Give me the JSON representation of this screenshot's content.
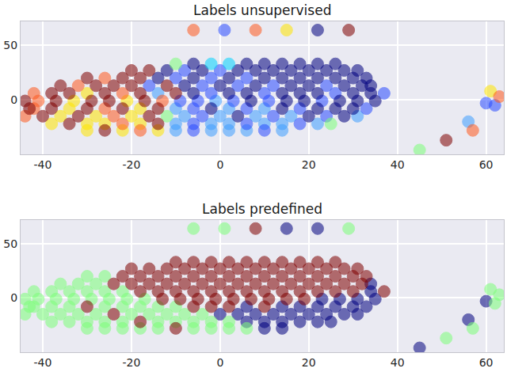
{
  "chart_data": [
    {
      "type": "scatter",
      "title": "Labels unsupervised",
      "marker": "circle",
      "grid": true,
      "xlim": [
        -45,
        64
      ],
      "ylim": [
        -50,
        72
      ],
      "xticks": [
        -40,
        -20,
        0,
        20,
        40,
        60
      ],
      "yticks": [
        0,
        50
      ],
      "series": [
        {
          "color": "#3f9fff",
          "x": [
            -14,
            -1,
            -10,
            2,
            10,
            -8,
            0,
            8,
            16,
            31,
            -10,
            -2,
            2,
            10,
            14,
            22,
            -10,
            -2,
            2,
            6,
            14,
            56
          ],
          "y": [
            6,
            -1,
            -8,
            -8,
            -8,
            -15,
            -15,
            -15,
            -15,
            -15,
            -22,
            -22,
            -22,
            -22,
            -22,
            -22,
            -28,
            -28,
            -28,
            -28,
            -28,
            -20
          ]
        },
        {
          "color": "#2a4cff",
          "x": [
            -8,
            0,
            -10,
            -2,
            6,
            -16,
            -4,
            4,
            12,
            24,
            -2,
            10,
            26,
            37,
            -9,
            -5,
            3,
            11,
            23,
            -6,
            6,
            18,
            33,
            -4,
            12,
            24,
            -6,
            6,
            18,
            -6,
            10,
            1,
            60,
            62
          ],
          "y": [
            27,
            27,
            20,
            20,
            20,
            13,
            13,
            13,
            13,
            13,
            6,
            6,
            6,
            6,
            -1,
            -1,
            -1,
            -1,
            -1,
            -8,
            -8,
            -8,
            -8,
            -15,
            -15,
            -15,
            -22,
            -22,
            -22,
            -28,
            -28,
            64,
            -3,
            -5
          ]
        },
        {
          "color": "#00007f",
          "x": [
            -6,
            6,
            10,
            14,
            18,
            22,
            26,
            -12,
            -4,
            4,
            8,
            12,
            16,
            20,
            24,
            28,
            31,
            -14,
            -6,
            2,
            10,
            14,
            18,
            22,
            26,
            30,
            33,
            -8,
            0,
            8,
            16,
            20,
            28,
            32,
            34,
            -6,
            2,
            6,
            14,
            18,
            22,
            30,
            34,
            7,
            15,
            19,
            27,
            31,
            35,
            -2,
            14,
            22,
            26,
            30,
            4,
            20,
            28,
            22
          ],
          "y": [
            33,
            33,
            33,
            33,
            33,
            33,
            33,
            27,
            27,
            27,
            27,
            27,
            27,
            27,
            27,
            27,
            27,
            20,
            20,
            20,
            20,
            20,
            20,
            20,
            20,
            20,
            20,
            13,
            13,
            13,
            13,
            13,
            13,
            13,
            13,
            6,
            6,
            6,
            6,
            6,
            6,
            6,
            6,
            -1,
            -1,
            -1,
            -1,
            -1,
            -1,
            -8,
            -8,
            -8,
            -8,
            -8,
            -15,
            -15,
            -15,
            64
          ]
        },
        {
          "color": "#00d4ff",
          "x": [
            -2,
            2
          ],
          "y": [
            33,
            33
          ]
        },
        {
          "color": "#7dff7a",
          "x": [
            -10,
            -12,
            25,
            45
          ],
          "y": [
            33,
            -15,
            -22,
            -46
          ]
        },
        {
          "color": "#ffe600",
          "x": [
            -30,
            -33,
            -21,
            -34,
            -18,
            -36,
            -28,
            -20,
            -38,
            -30,
            -26,
            -18,
            -30,
            -22,
            -14,
            15,
            61
          ],
          "y": [
            6,
            -1,
            -1,
            -8,
            -8,
            -15,
            -15,
            -15,
            -22,
            -22,
            -22,
            -22,
            -28,
            -28,
            -28,
            64,
            8
          ]
        },
        {
          "color": "#ff5a1f",
          "x": [
            -26,
            -32,
            -42,
            -22,
            -41,
            -13,
            -42,
            -26,
            -44,
            -24,
            -22,
            -18,
            -6,
            8,
            63,
            57
          ],
          "y": [
            20,
            13,
            6,
            6,
            -1,
            -1,
            -8,
            -8,
            -15,
            -15,
            -22,
            -28,
            64,
            64,
            3,
            -28
          ]
        },
        {
          "color": "#7f0000",
          "x": [
            -20,
            -16,
            -30,
            -22,
            -18,
            -36,
            -28,
            -24,
            -20,
            -12,
            -38,
            -34,
            -26,
            -18,
            -10,
            -44,
            -37,
            -29,
            -25,
            -17,
            -43,
            -38,
            -30,
            -22,
            -14,
            -40,
            -32,
            -16,
            -34,
            -14,
            -26,
            29,
            51
          ],
          "y": [
            27,
            27,
            20,
            20,
            20,
            13,
            13,
            13,
            13,
            13,
            6,
            6,
            6,
            6,
            6,
            -1,
            -1,
            -1,
            -1,
            -1,
            -8,
            -8,
            -8,
            -8,
            -8,
            -15,
            -15,
            -15,
            -22,
            -22,
            -28,
            64,
            -37
          ]
        }
      ]
    },
    {
      "type": "scatter",
      "title": "Labels predefined",
      "marker": "circle",
      "grid": true,
      "xlim": [
        -45,
        64
      ],
      "ylim": [
        -50,
        72
      ],
      "xticks": [
        -40,
        -20,
        0,
        20,
        40,
        60
      ],
      "yticks": [
        0,
        50
      ],
      "series": [
        {
          "color": "#00007f",
          "x": [
            34,
            34,
            23,
            27,
            31,
            35,
            6,
            14,
            18,
            22,
            26,
            30,
            33,
            0,
            4,
            8,
            12,
            16,
            20,
            24,
            28,
            31,
            6,
            10,
            14,
            18,
            22,
            25,
            10,
            14,
            15,
            22,
            60,
            56,
            45
          ],
          "y": [
            13,
            6,
            -1,
            -1,
            -1,
            -1,
            -8,
            -8,
            -8,
            -8,
            -8,
            -8,
            -8,
            -15,
            -15,
            -15,
            -15,
            -15,
            -15,
            -15,
            -15,
            -15,
            -22,
            -22,
            -22,
            -22,
            -22,
            -22,
            -28,
            -28,
            64,
            64,
            -3,
            -20,
            -46
          ]
        },
        {
          "color": "#7dff7a",
          "x": [
            -30,
            -26,
            -36,
            -32,
            -28,
            -42,
            -38,
            -34,
            -30,
            -26,
            -22,
            -44,
            -41,
            -37,
            -33,
            -29,
            -25,
            -21,
            -17,
            -43,
            -42,
            -38,
            -34,
            -26,
            -22,
            -18,
            -14,
            -10,
            -44,
            -40,
            -36,
            -32,
            -28,
            -20,
            -16,
            -12,
            -8,
            -4,
            -38,
            -34,
            -30,
            -26,
            -22,
            -14,
            -10,
            -6,
            -2,
            2,
            -30,
            -26,
            -22,
            -18,
            -14,
            -6,
            -2,
            2,
            6,
            -6,
            1,
            29,
            61,
            63,
            62,
            57,
            51
          ],
          "y": [
            20,
            20,
            13,
            13,
            13,
            6,
            6,
            6,
            6,
            6,
            6,
            -1,
            -1,
            -1,
            -1,
            -1,
            -1,
            -1,
            -1,
            -8,
            -8,
            -8,
            -8,
            -8,
            -8,
            -8,
            -8,
            -8,
            -15,
            -15,
            -15,
            -15,
            -15,
            -15,
            -15,
            -15,
            -15,
            -15,
            -22,
            -22,
            -22,
            -22,
            -22,
            -22,
            -22,
            -22,
            -22,
            -22,
            -28,
            -28,
            -28,
            -28,
            -28,
            -28,
            -28,
            -28,
            -28,
            64,
            64,
            64,
            8,
            3,
            -5,
            -28,
            -37
          ]
        },
        {
          "color": "#7f0000",
          "x": [
            -10,
            -6,
            -2,
            2,
            6,
            10,
            14,
            18,
            22,
            26,
            -20,
            -16,
            -12,
            -8,
            -4,
            0,
            4,
            8,
            12,
            16,
            20,
            24,
            28,
            31,
            -22,
            -18,
            -14,
            -10,
            -6,
            -2,
            2,
            6,
            10,
            14,
            18,
            22,
            26,
            30,
            33,
            -24,
            -20,
            -16,
            -12,
            -8,
            -4,
            0,
            4,
            8,
            12,
            16,
            20,
            24,
            28,
            32,
            -18,
            -14,
            -10,
            -6,
            -2,
            2,
            6,
            10,
            14,
            18,
            22,
            26,
            30,
            37,
            -13,
            -9,
            -5,
            -1,
            3,
            7,
            11,
            15,
            19,
            -30,
            -6,
            -2,
            2,
            10,
            -24,
            -18,
            -10,
            8
          ],
          "y": [
            33,
            33,
            33,
            33,
            33,
            33,
            33,
            33,
            33,
            33,
            27,
            27,
            27,
            27,
            27,
            27,
            27,
            27,
            27,
            27,
            27,
            27,
            27,
            27,
            20,
            20,
            20,
            20,
            20,
            20,
            20,
            20,
            20,
            20,
            20,
            20,
            20,
            20,
            20,
            13,
            13,
            13,
            13,
            13,
            13,
            13,
            13,
            13,
            13,
            13,
            13,
            13,
            13,
            13,
            6,
            6,
            6,
            6,
            6,
            6,
            6,
            6,
            6,
            6,
            6,
            6,
            6,
            6,
            -1,
            -1,
            -1,
            -1,
            -1,
            -1,
            -1,
            -1,
            -1,
            -8,
            -8,
            -8,
            -8,
            -8,
            -15,
            -22,
            -28,
            64
          ]
        }
      ]
    }
  ]
}
